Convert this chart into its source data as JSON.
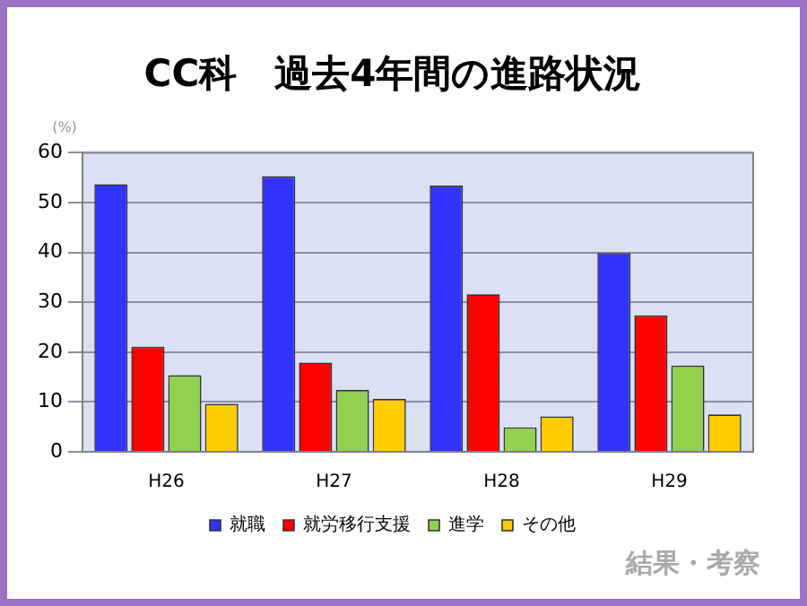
{
  "chart_data": {
    "type": "bar",
    "title": "CC科　過去4年間の進路状況",
    "ylabel": "(%)",
    "categories": [
      "H26",
      "H27",
      "H28",
      "H29"
    ],
    "series": [
      {
        "name": "就職",
        "color": "#3333ff",
        "values": [
          53.7,
          55.3,
          53.4,
          39.9
        ]
      },
      {
        "name": "就労移行支援",
        "color": "#ff0000",
        "values": [
          21.1,
          17.9,
          31.6,
          27.4
        ]
      },
      {
        "name": "進学",
        "color": "#92d050",
        "values": [
          15.4,
          12.4,
          4.9,
          17.3
        ]
      },
      {
        "name": "その他",
        "color": "#ffcc00",
        "values": [
          9.6,
          10.6,
          7.1,
          7.5
        ]
      }
    ],
    "ylim": [
      0,
      60
    ],
    "yticks": [
      0,
      10,
      20,
      30,
      40,
      50,
      60
    ],
    "grid": "y",
    "legend": "bottom",
    "annotations": [
      "結果・考察"
    ]
  }
}
